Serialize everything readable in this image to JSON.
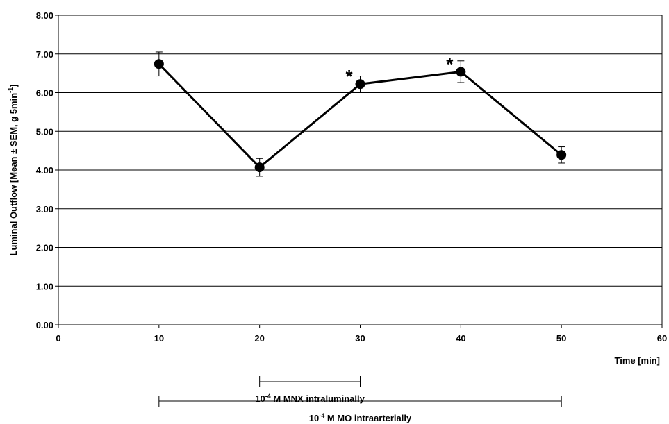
{
  "chart_data": {
    "type": "line",
    "xlabel": "Time [min]",
    "ylabel": {
      "main": "Luminal Outflow [Mean ± SEM, g 5min",
      "sup": "-1",
      "close": "]"
    },
    "xlim": [
      0,
      60
    ],
    "ylim": [
      0,
      8
    ],
    "x_ticks": [
      "0",
      "10",
      "20",
      "30",
      "40",
      "50",
      "60"
    ],
    "y_ticks": [
      "0.00",
      "1.00",
      "2.00",
      "3.00",
      "4.00",
      "5.00",
      "6.00",
      "7.00",
      "8.00"
    ],
    "grid": "horizontal",
    "series": [
      {
        "x": [
          10,
          20,
          30,
          40,
          50
        ],
        "y": [
          6.74,
          4.07,
          6.22,
          6.54,
          4.39
        ],
        "sem": [
          0.31,
          0.23,
          0.21,
          0.28,
          0.21
        ],
        "color": "#000000",
        "marker": "filled-circle"
      }
    ],
    "annotations": [
      {
        "text": "*",
        "x": 30,
        "y": 6.22,
        "meaning": "significance marker"
      },
      {
        "text": "*",
        "x": 40,
        "y": 6.54,
        "meaning": "significance marker"
      }
    ],
    "treatment_bars": [
      {
        "x_start": 20,
        "x_end": 30,
        "sup": "-4",
        "pre": "10",
        "label": " M MNX intraluminally"
      },
      {
        "x_start": 10,
        "x_end": 50,
        "sup": "-4",
        "pre": "10",
        "label": " M MO intraarterially"
      }
    ]
  }
}
